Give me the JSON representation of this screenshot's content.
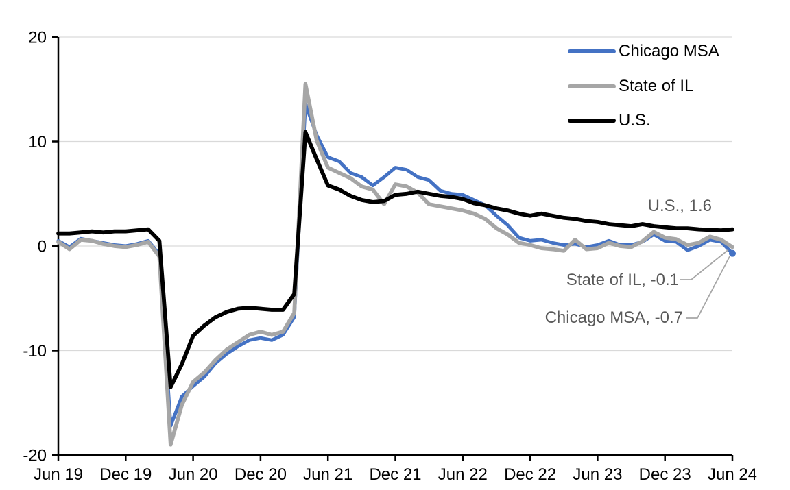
{
  "chart_data": {
    "type": "line",
    "title": "",
    "frequency": "monthly",
    "x_start": "Jun 2019",
    "x_end": "Jun 2024",
    "x_tick_labels": [
      "Jun 19",
      "Dec 19",
      "Jun 20",
      "Dec 20",
      "Jun 21",
      "Dec 21",
      "Jun 22",
      "Dec 22",
      "Jun 23",
      "Dec 23",
      "Jun 24"
    ],
    "y_ticks": [
      20,
      10,
      0,
      -10,
      -20
    ],
    "ylim": [
      -20,
      20
    ],
    "grid": "horizontal",
    "gridline_color": "#D9D9D9",
    "axis_color": "#000000",
    "tick_label_color": "#000000",
    "annotation_text_color": "#595959",
    "leader_line_color": "#A6A6A6",
    "legend_position": "top-right",
    "series": [
      {
        "name": "Chicago MSA",
        "color": "#4472C4",
        "values": [
          0.5,
          -0.1,
          0.7,
          0.5,
          0.3,
          0.1,
          0.0,
          0.2,
          0.5,
          -0.8,
          -17.2,
          -14.4,
          -13.4,
          -12.5,
          -11.2,
          -10.3,
          -9.6,
          -9.0,
          -8.8,
          -9.0,
          -8.5,
          -6.8,
          13.6,
          10.6,
          8.5,
          8.1,
          7.0,
          6.6,
          5.8,
          6.6,
          7.5,
          7.3,
          6.6,
          6.3,
          5.3,
          5.0,
          4.9,
          4.4,
          3.9,
          2.9,
          2.0,
          0.8,
          0.5,
          0.6,
          0.3,
          0.1,
          0.2,
          -0.1,
          0.1,
          0.5,
          0.1,
          0.1,
          0.4,
          1.1,
          0.5,
          0.4,
          -0.4,
          0.0,
          0.6,
          0.4,
          -0.7
        ]
      },
      {
        "name": "State of IL",
        "color": "#A6A6A6",
        "values": [
          0.4,
          -0.3,
          0.6,
          0.5,
          0.2,
          0.0,
          -0.1,
          0.1,
          0.4,
          -1.0,
          -19.0,
          -15.2,
          -13.0,
          -12.1,
          -10.9,
          -9.9,
          -9.2,
          -8.5,
          -8.2,
          -8.5,
          -8.2,
          -6.4,
          15.5,
          10.1,
          7.5,
          7.0,
          6.5,
          5.7,
          5.4,
          4.0,
          5.9,
          5.7,
          5.1,
          4.0,
          3.8,
          3.6,
          3.4,
          3.1,
          2.6,
          1.7,
          1.1,
          0.3,
          0.1,
          -0.2,
          -0.3,
          -0.45,
          0.6,
          -0.3,
          -0.2,
          0.3,
          0.0,
          -0.1,
          0.45,
          1.35,
          0.8,
          0.65,
          0.1,
          0.3,
          0.9,
          0.6,
          -0.1
        ]
      },
      {
        "name": "U.S.",
        "color": "#000000",
        "values": [
          1.2,
          1.2,
          1.3,
          1.4,
          1.3,
          1.4,
          1.4,
          1.5,
          1.6,
          0.5,
          -13.5,
          -11.3,
          -8.6,
          -7.6,
          -6.8,
          -6.3,
          -6.0,
          -5.9,
          -6.0,
          -6.1,
          -6.1,
          -4.6,
          10.9,
          8.3,
          5.8,
          5.4,
          4.8,
          4.4,
          4.2,
          4.3,
          4.9,
          5.0,
          5.2,
          5.0,
          4.8,
          4.7,
          4.5,
          4.1,
          3.9,
          3.6,
          3.4,
          3.1,
          2.9,
          3.1,
          2.9,
          2.7,
          2.6,
          2.4,
          2.3,
          2.1,
          2.0,
          1.9,
          2.1,
          1.9,
          1.8,
          1.7,
          1.7,
          1.6,
          1.55,
          1.5,
          1.6
        ]
      }
    ],
    "annotations": [
      {
        "text": "U.S., 1.6",
        "series": "U.S.",
        "value": 1.6,
        "leader": false
      },
      {
        "text": "State of IL, -0.1",
        "series": "State of IL",
        "value": -0.1,
        "leader": true
      },
      {
        "text": "Chicago MSA, -0.7",
        "series": "Chicago MSA",
        "value": -0.7,
        "leader": true
      }
    ],
    "end_marker": {
      "series_index": 0,
      "shape": "circle"
    }
  }
}
